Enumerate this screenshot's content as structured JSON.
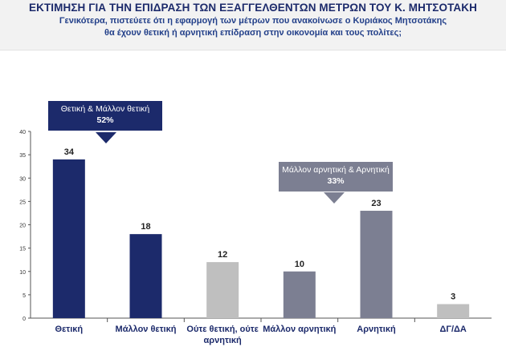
{
  "header": {
    "title": "ΕΚΤΙΜΗΣΗ ΓΙΑ ΤΗΝ ΕΠΙΔΡΑΣΗ ΤΩΝ ΕΞΑΓΓΕΛΘΕΝΤΩΝ ΜΕΤΡΩΝ ΤΟΥ Κ. ΜΗΤΣΟΤΑΚΗ",
    "subtitle_line1": "Γενικότερα, πιστεύετε ότι η εφαρμογή των μέτρων που ανακοίνωσε ο Κυριάκος Μητσοτάκης",
    "subtitle_line2": "θα έχουν θετική ή αρνητική επίδραση στην οικονομία και τους πολίτες;"
  },
  "callouts": {
    "positive": {
      "label": "Θετική & Μάλλον θετική",
      "value": "52%",
      "color": "#1c2a6b"
    },
    "negative": {
      "label": "Μάλλον αρνητική & Αρνητική",
      "value": "33%",
      "color": "#7c7f92"
    }
  },
  "chart_data": {
    "type": "bar",
    "categories": [
      "Θετική",
      "Μάλλον θετική",
      "Ούτε θετική, ούτε αρνητική",
      "Μάλλον αρνητική",
      "Αρνητική",
      "ΔΓ/ΔΑ"
    ],
    "category_lines": [
      [
        "Θετική"
      ],
      [
        "Μάλλον θετική"
      ],
      [
        "Ούτε θετική, ούτε",
        "αρνητική"
      ],
      [
        "Μάλλον αρνητική"
      ],
      [
        "Αρνητική"
      ],
      [
        "ΔΓ/ΔΑ"
      ]
    ],
    "values": [
      34,
      18,
      12,
      10,
      23,
      3
    ],
    "colors": [
      "#1c2a6b",
      "#1c2a6b",
      "#bfbfbf",
      "#7c7f92",
      "#7c7f92",
      "#bfbfbf"
    ],
    "ylim": [
      0,
      40
    ],
    "yticks": [
      0,
      5,
      10,
      15,
      20,
      25,
      30,
      35,
      40
    ],
    "grid": false,
    "title": "",
    "xlabel": "",
    "ylabel": ""
  }
}
